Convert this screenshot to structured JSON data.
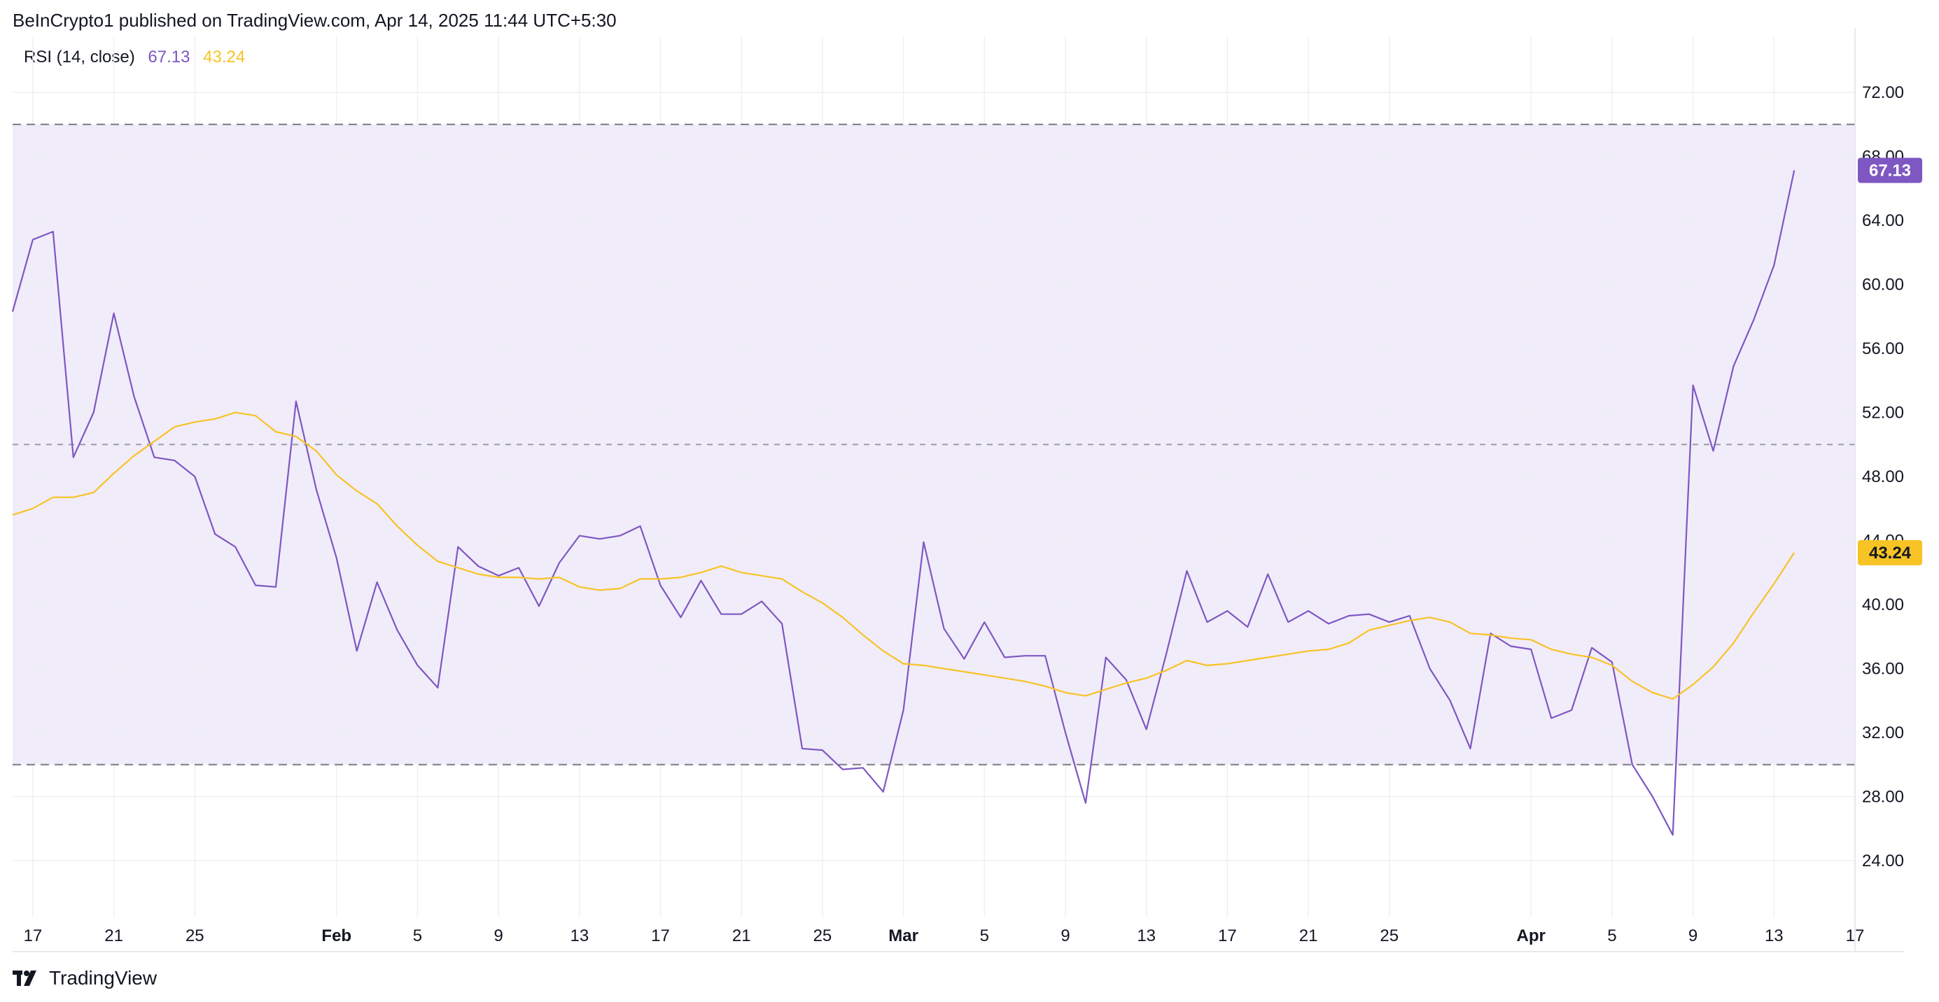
{
  "header": {
    "publisher": "BeInCrypto1 published on TradingView.com, Apr 14, 2025 11:44 UTC+5:30"
  },
  "footer": {
    "brand": "TradingView",
    "logo_icon": "tradingview-logo-icon"
  },
  "colors": {
    "rsi_line": "#7e57c2",
    "ma_line": "#f7c325",
    "band_fill": "#f1ecfa",
    "band_border": "#787b86",
    "grid": "#eef0f3"
  },
  "chart_data": {
    "type": "line",
    "title": "",
    "xlabel": "",
    "ylabel": "",
    "legend": {
      "label": "RSI (14, close)",
      "values": [
        "67.13",
        "43.24"
      ],
      "placement": "top-left"
    },
    "ylim": [
      20.5,
      75.5
    ],
    "y_ticks": [
      "72.00",
      "68.00",
      "64.00",
      "60.00",
      "56.00",
      "52.00",
      "48.00",
      "44.00",
      "40.00",
      "36.00",
      "32.00",
      "28.00",
      "24.00"
    ],
    "x_range": [
      "2025-01-16",
      "2025-04-17"
    ],
    "x_ticks": [
      {
        "date": "2025-01-17",
        "label": "17",
        "bold": false
      },
      {
        "date": "2025-01-21",
        "label": "21",
        "bold": false
      },
      {
        "date": "2025-01-25",
        "label": "25",
        "bold": false
      },
      {
        "date": "2025-02-01",
        "label": "Feb",
        "bold": true
      },
      {
        "date": "2025-02-05",
        "label": "5",
        "bold": false
      },
      {
        "date": "2025-02-09",
        "label": "9",
        "bold": false
      },
      {
        "date": "2025-02-13",
        "label": "13",
        "bold": false
      },
      {
        "date": "2025-02-17",
        "label": "17",
        "bold": false
      },
      {
        "date": "2025-02-21",
        "label": "21",
        "bold": false
      },
      {
        "date": "2025-02-25",
        "label": "25",
        "bold": false
      },
      {
        "date": "2025-03-01",
        "label": "Mar",
        "bold": true
      },
      {
        "date": "2025-03-05",
        "label": "5",
        "bold": false
      },
      {
        "date": "2025-03-09",
        "label": "9",
        "bold": false
      },
      {
        "date": "2025-03-13",
        "label": "13",
        "bold": false
      },
      {
        "date": "2025-03-17",
        "label": "17",
        "bold": false
      },
      {
        "date": "2025-03-21",
        "label": "21",
        "bold": false
      },
      {
        "date": "2025-03-25",
        "label": "25",
        "bold": false
      },
      {
        "date": "2025-04-01",
        "label": "Apr",
        "bold": true
      },
      {
        "date": "2025-04-05",
        "label": "5",
        "bold": false
      },
      {
        "date": "2025-04-09",
        "label": "9",
        "bold": false
      },
      {
        "date": "2025-04-13",
        "label": "13",
        "bold": false
      },
      {
        "date": "2025-04-17",
        "label": "17",
        "bold": false
      }
    ],
    "bands": {
      "upper": 70,
      "middle": 50,
      "lower": 30
    },
    "grid": true,
    "series": [
      {
        "role": "rsi",
        "color": "#7e57c2",
        "last_value_label": "67.13",
        "x": [
          "2025-01-16",
          "2025-01-17",
          "2025-01-18",
          "2025-01-19",
          "2025-01-20",
          "2025-01-21",
          "2025-01-22",
          "2025-01-23",
          "2025-01-24",
          "2025-01-25",
          "2025-01-26",
          "2025-01-27",
          "2025-01-28",
          "2025-01-29",
          "2025-01-30",
          "2025-01-31",
          "2025-02-01",
          "2025-02-02",
          "2025-02-03",
          "2025-02-04",
          "2025-02-05",
          "2025-02-06",
          "2025-02-07",
          "2025-02-08",
          "2025-02-09",
          "2025-02-10",
          "2025-02-11",
          "2025-02-12",
          "2025-02-13",
          "2025-02-14",
          "2025-02-15",
          "2025-02-16",
          "2025-02-17",
          "2025-02-18",
          "2025-02-19",
          "2025-02-20",
          "2025-02-21",
          "2025-02-22",
          "2025-02-23",
          "2025-02-24",
          "2025-02-25",
          "2025-02-26",
          "2025-02-27",
          "2025-02-28",
          "2025-03-01",
          "2025-03-02",
          "2025-03-03",
          "2025-03-04",
          "2025-03-05",
          "2025-03-06",
          "2025-03-07",
          "2025-03-08",
          "2025-03-09",
          "2025-03-10",
          "2025-03-11",
          "2025-03-12",
          "2025-03-13",
          "2025-03-14",
          "2025-03-15",
          "2025-03-16",
          "2025-03-17",
          "2025-03-18",
          "2025-03-19",
          "2025-03-20",
          "2025-03-21",
          "2025-03-22",
          "2025-03-23",
          "2025-03-24",
          "2025-03-25",
          "2025-03-26",
          "2025-03-27",
          "2025-03-28",
          "2025-03-29",
          "2025-03-30",
          "2025-03-31",
          "2025-04-01",
          "2025-04-02",
          "2025-04-03",
          "2025-04-04",
          "2025-04-05",
          "2025-04-06",
          "2025-04-07",
          "2025-04-08",
          "2025-04-09",
          "2025-04-10",
          "2025-04-11",
          "2025-04-12",
          "2025-04-13",
          "2025-04-14"
        ],
        "values": [
          58.3,
          62.8,
          63.3,
          49.2,
          52.0,
          58.2,
          53.0,
          49.2,
          49.0,
          48.0,
          44.4,
          43.6,
          41.2,
          41.1,
          52.7,
          47.2,
          42.9,
          37.1,
          41.4,
          38.4,
          36.2,
          34.8,
          43.6,
          42.4,
          41.8,
          42.3,
          39.9,
          42.6,
          44.3,
          44.1,
          44.3,
          44.9,
          41.2,
          39.2,
          41.5,
          39.4,
          39.4,
          40.2,
          38.8,
          31.0,
          30.9,
          29.7,
          29.8,
          28.3,
          33.4,
          43.9,
          38.5,
          36.6,
          38.9,
          36.7,
          36.8,
          36.8,
          32.0,
          27.6,
          36.7,
          35.3,
          32.2,
          37.0,
          42.1,
          38.9,
          39.6,
          38.6,
          41.9,
          38.9,
          39.6,
          38.8,
          39.3,
          39.4,
          38.9,
          39.3,
          36.0,
          34.0,
          31.0,
          38.2,
          37.4,
          37.2,
          32.9,
          33.4,
          37.3,
          36.4,
          30.0,
          28.0,
          25.6,
          53.7,
          49.6,
          54.9,
          57.8,
          61.2,
          67.13
        ]
      },
      {
        "role": "rsi-based-ma",
        "color": "#f7c325",
        "last_value_label": "43.24",
        "x": [
          "2025-01-16",
          "2025-01-17",
          "2025-01-18",
          "2025-01-19",
          "2025-01-20",
          "2025-01-21",
          "2025-01-22",
          "2025-01-23",
          "2025-01-24",
          "2025-01-25",
          "2025-01-26",
          "2025-01-27",
          "2025-01-28",
          "2025-01-29",
          "2025-01-30",
          "2025-01-31",
          "2025-02-01",
          "2025-02-02",
          "2025-02-03",
          "2025-02-04",
          "2025-02-05",
          "2025-02-06",
          "2025-02-07",
          "2025-02-08",
          "2025-02-09",
          "2025-02-10",
          "2025-02-11",
          "2025-02-12",
          "2025-02-13",
          "2025-02-14",
          "2025-02-15",
          "2025-02-16",
          "2025-02-17",
          "2025-02-18",
          "2025-02-19",
          "2025-02-20",
          "2025-02-21",
          "2025-02-22",
          "2025-02-23",
          "2025-02-24",
          "2025-02-25",
          "2025-02-26",
          "2025-02-27",
          "2025-02-28",
          "2025-03-01",
          "2025-03-02",
          "2025-03-03",
          "2025-03-04",
          "2025-03-05",
          "2025-03-06",
          "2025-03-07",
          "2025-03-08",
          "2025-03-09",
          "2025-03-10",
          "2025-03-11",
          "2025-03-12",
          "2025-03-13",
          "2025-03-14",
          "2025-03-15",
          "2025-03-16",
          "2025-03-17",
          "2025-03-18",
          "2025-03-19",
          "2025-03-20",
          "2025-03-21",
          "2025-03-22",
          "2025-03-23",
          "2025-03-24",
          "2025-03-25",
          "2025-03-26",
          "2025-03-27",
          "2025-03-28",
          "2025-03-29",
          "2025-03-30",
          "2025-03-31",
          "2025-04-01",
          "2025-04-02",
          "2025-04-03",
          "2025-04-04",
          "2025-04-05",
          "2025-04-06",
          "2025-04-07",
          "2025-04-08",
          "2025-04-09",
          "2025-04-10",
          "2025-04-11",
          "2025-04-12",
          "2025-04-13",
          "2025-04-14"
        ],
        "values": [
          45.6,
          46.0,
          46.7,
          46.7,
          47.0,
          48.2,
          49.3,
          50.2,
          51.1,
          51.4,
          51.6,
          52.0,
          51.8,
          50.8,
          50.5,
          49.6,
          48.1,
          47.1,
          46.3,
          44.9,
          43.7,
          42.7,
          42.3,
          41.9,
          41.7,
          41.7,
          41.6,
          41.7,
          41.1,
          40.9,
          41.0,
          41.6,
          41.6,
          41.7,
          42.0,
          42.4,
          42.0,
          41.8,
          41.6,
          40.8,
          40.1,
          39.2,
          38.1,
          37.1,
          36.3,
          36.2,
          36.0,
          35.8,
          35.6,
          35.4,
          35.2,
          34.9,
          34.5,
          34.3,
          34.7,
          35.1,
          35.4,
          35.9,
          36.5,
          36.2,
          36.3,
          36.5,
          36.7,
          36.9,
          37.1,
          37.2,
          37.6,
          38.4,
          38.7,
          39.0,
          39.2,
          38.9,
          38.2,
          38.1,
          37.9,
          37.8,
          37.2,
          36.9,
          36.7,
          36.2,
          35.2,
          34.5,
          34.1,
          35.0,
          36.1,
          37.6,
          39.5,
          41.3,
          43.24
        ]
      }
    ]
  }
}
